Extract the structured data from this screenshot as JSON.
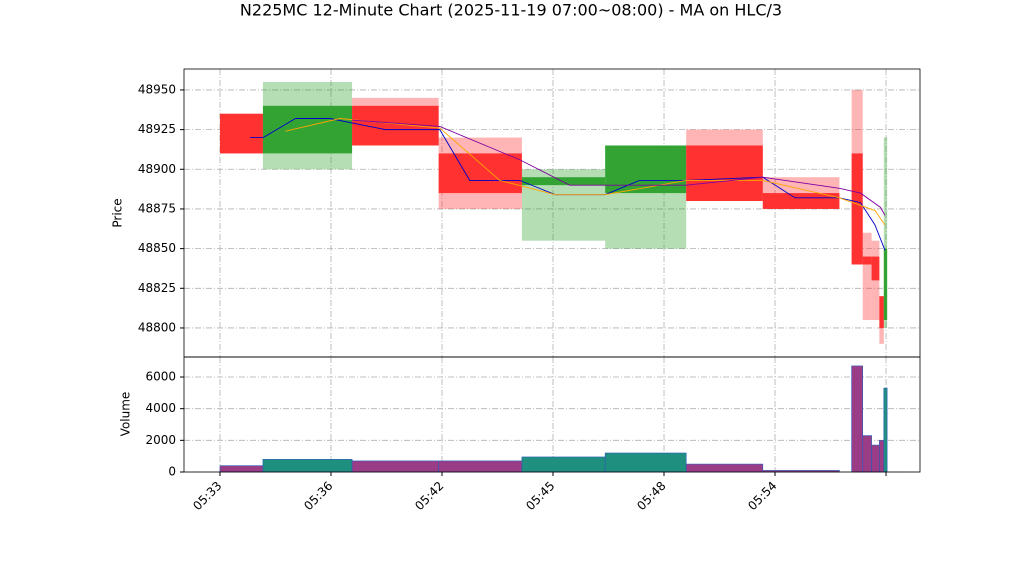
{
  "chart_data": {
    "type": "candlestick",
    "title": "N225MC 12-Minute Chart (2025-11-19 07:00~08:00) - MA on HLC/3",
    "ylabel": "Price",
    "y2label": "Volume",
    "xlim": [
      -3.24,
      63.06
    ],
    "xticks": [
      {
        "value": 0,
        "label": "05:33"
      },
      {
        "value": 10,
        "label": "05:36"
      },
      {
        "value": 20,
        "label": "05:42"
      },
      {
        "value": 30,
        "label": "05:45"
      },
      {
        "value": 40,
        "label": "05:48"
      },
      {
        "value": 50,
        "label": "05:54"
      },
      {
        "value": 60,
        "label": null
      }
    ],
    "ylim": [
      48781.7,
      48963.2
    ],
    "yticks": [
      48800,
      48825,
      48850,
      48875,
      48900,
      48925,
      48950
    ],
    "y2lim": [
      0,
      7263
    ],
    "y2ticks": [
      0,
      2000,
      4000,
      6000
    ],
    "grid": true,
    "up_color": "#2ca02c",
    "down_color": "#ff2a2a",
    "volume_up_color": "#1f8f7f",
    "volume_down_color": "#9b3d86",
    "candles": {
      "x": [
        0,
        3.87,
        11.9,
        19.7,
        27.2,
        34.7,
        42.0,
        48.9,
        56.9,
        57.9,
        58.7,
        59.4,
        59.8
      ],
      "x_end": [
        3.87,
        11.9,
        19.7,
        27.2,
        34.7,
        42.0,
        48.9,
        55.8,
        57.9,
        58.7,
        59.4,
        59.8,
        60.1
      ],
      "open": [
        48935,
        48910,
        48940,
        48910,
        48890,
        48885,
        48915,
        48885,
        48910,
        48845,
        48845,
        48820,
        48805
      ],
      "high": [
        48935,
        48955,
        48945,
        48920,
        48900,
        48915,
        48925,
        48895,
        48950,
        48860,
        48855,
        48820,
        48920
      ],
      "low": [
        48910,
        48900,
        48915,
        48875,
        48855,
        48850,
        48880,
        48875,
        48840,
        48805,
        48805,
        48790,
        48800
      ],
      "close": [
        48910,
        48940,
        48915,
        48885,
        48895,
        48915,
        48880,
        48875,
        48840,
        48840,
        48830,
        48800,
        48850
      ],
      "volume": [
        400,
        800,
        700,
        700,
        950,
        1200,
        500,
        100,
        6700,
        2300,
        1700,
        2000,
        5300
      ]
    },
    "series": [
      {
        "color": "#0000cc",
        "x": [
          2.7,
          3.9,
          6.8,
          9.9,
          14.9,
          19.8,
          22.5,
          27.0,
          30.2,
          34.7,
          37.8,
          42.0,
          48.9,
          51.8,
          55.8,
          57.7,
          59.0,
          59.9
        ],
        "values": [
          48920,
          48920,
          48932,
          48932,
          48925,
          48925,
          48893,
          48893,
          48884,
          48884,
          48893,
          48893,
          48895,
          48882,
          48882,
          48879,
          48865,
          48849
        ]
      },
      {
        "color": "#ffa500",
        "x": [
          5.9,
          10.8,
          19.8,
          25.2,
          30.2,
          34.7,
          42.0,
          48.9,
          55.8,
          59.0,
          59.9
        ],
        "values": [
          48924,
          48932,
          48926,
          48893,
          48884,
          48884,
          48893,
          48893,
          48882,
          48874,
          48865
        ]
      },
      {
        "color": "#8000a0",
        "x": [
          11.9,
          19.8,
          27.0,
          31.5,
          42.0,
          48.9,
          55.8,
          57.7,
          59.5,
          59.9
        ],
        "values": [
          48931,
          48927,
          48906,
          48890,
          48890,
          48895,
          48888,
          48885,
          48876,
          48871
        ]
      }
    ]
  }
}
